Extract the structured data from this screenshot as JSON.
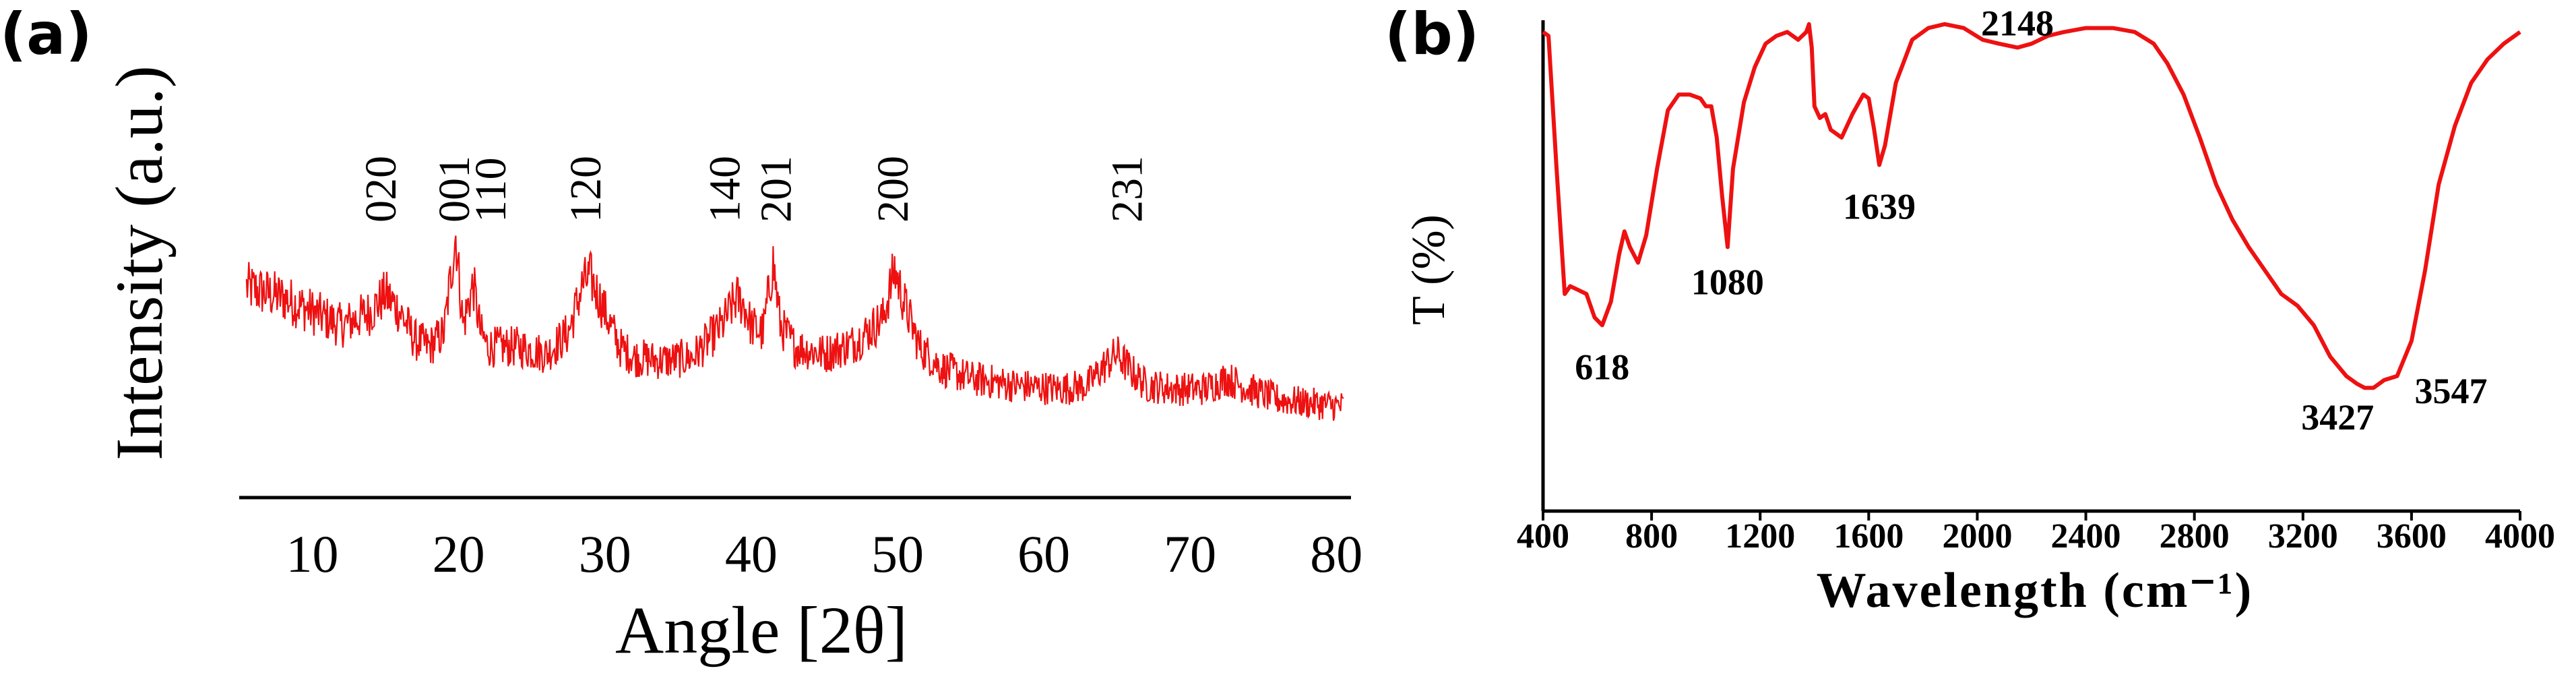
{
  "chart_data": [
    {
      "type": "line",
      "panel_label": "(a)",
      "xlabel": "Angle [2θ]",
      "ylabel": "Intensity (a.u.)",
      "xlim": [
        5,
        81
      ],
      "x_ticks": [
        10,
        20,
        30,
        40,
        50,
        60,
        70,
        80
      ],
      "y_ticks_shown": false,
      "grid": false,
      "color": "#ee1111",
      "noise_amplitude": 0.35,
      "series": [
        {
          "x": [
            5.5,
            8,
            10,
            12,
            14,
            15,
            16,
            17,
            18,
            19,
            19.8,
            20.3,
            21,
            21.5,
            22,
            24,
            26,
            27.5,
            28.5,
            29,
            30,
            31,
            32,
            34,
            36,
            38,
            39,
            39.5,
            40,
            40.8,
            41.5,
            42,
            43,
            45,
            47,
            49,
            49.8,
            50.5,
            51.5,
            53,
            55,
            58,
            61,
            63,
            64,
            65,
            66,
            67,
            69,
            71,
            72.5,
            74,
            76,
            78,
            80.5
          ],
          "y": [
            4.5,
            4.2,
            3.8,
            3.4,
            3.8,
            4.3,
            3.8,
            3.0,
            2.8,
            3.2,
            6.0,
            3.4,
            4.6,
            3.2,
            2.8,
            2.8,
            2.6,
            3.2,
            4.6,
            4.8,
            3.8,
            2.8,
            2.5,
            2.4,
            2.5,
            3.4,
            4.2,
            4.0,
            3.4,
            3.2,
            5.2,
            3.4,
            2.8,
            2.6,
            2.9,
            3.6,
            5.0,
            4.0,
            2.8,
            2.2,
            1.9,
            1.7,
            1.6,
            1.7,
            2.2,
            2.6,
            2.1,
            1.7,
            1.6,
            1.6,
            1.9,
            1.6,
            1.3,
            1.2,
            1.1
          ]
        }
      ],
      "annotations": [
        {
          "text": "020",
          "x": 15
        },
        {
          "text": "001",
          "x": 20
        },
        {
          "text": "110",
          "x": 22.5
        },
        {
          "text": "120",
          "x": 29
        },
        {
          "text": "140",
          "x": 38.5
        },
        {
          "text": "201",
          "x": 42
        },
        {
          "text": "200",
          "x": 50
        },
        {
          "text": "231",
          "x": 66
        }
      ]
    },
    {
      "type": "line",
      "panel_label": "(b)",
      "xlabel": "Wavelength (cm⁻¹)",
      "ylabel": "T (%)",
      "xlim": [
        400,
        4000
      ],
      "x_ticks": [
        400,
        800,
        1200,
        1600,
        2000,
        2400,
        2800,
        3200,
        3600,
        4000
      ],
      "x_tick_labels": [
        "400",
        "800",
        "1200",
        "1600",
        "2000",
        "2400",
        "2800",
        "3200",
        "3600",
        "4000"
      ],
      "y_ticks_shown": false,
      "grid": false,
      "color": "#ee1111",
      "series": [
        {
          "x": [
            400,
            420,
            450,
            480,
            500,
            530,
            560,
            590,
            618,
            650,
            680,
            700,
            720,
            750,
            780,
            820,
            860,
            900,
            940,
            980,
            1000,
            1020,
            1040,
            1060,
            1080,
            1100,
            1140,
            1180,
            1220,
            1260,
            1300,
            1340,
            1370,
            1380,
            1390,
            1400,
            1420,
            1440,
            1460,
            1500,
            1540,
            1580,
            1600,
            1620,
            1639,
            1660,
            1700,
            1760,
            1820,
            1880,
            1950,
            2020,
            2080,
            2148,
            2200,
            2260,
            2320,
            2400,
            2500,
            2580,
            2650,
            2700,
            2760,
            2820,
            2880,
            2940,
            3000,
            3060,
            3120,
            3180,
            3240,
            3300,
            3360,
            3400,
            3427,
            3460,
            3500,
            3547,
            3600,
            3650,
            3700,
            3760,
            3820,
            3880,
            3940,
            4000
          ],
          "y": [
            97,
            96,
            62,
            30,
            32,
            31,
            30,
            24,
            22,
            28,
            40,
            46,
            42,
            38,
            45,
            62,
            77,
            81,
            81,
            80,
            78,
            78,
            70,
            55,
            42,
            62,
            79,
            88,
            94,
            96,
            97,
            95,
            97,
            99,
            93,
            78,
            75,
            76,
            72,
            70,
            76,
            81,
            80,
            72,
            63,
            68,
            84,
            95,
            98,
            99,
            98,
            95,
            94,
            93,
            94,
            96,
            97,
            98,
            98,
            97,
            94,
            89,
            81,
            70,
            58,
            49,
            42,
            36,
            30,
            27,
            22,
            14,
            9,
            7,
            6,
            6,
            8,
            9,
            18,
            36,
            58,
            73,
            84,
            90,
            94,
            97
          ]
        }
      ],
      "annotations": [
        {
          "text": "618",
          "x": 618,
          "y": 22
        },
        {
          "text": "1080",
          "x": 1080,
          "y": 42
        },
        {
          "text": "1639",
          "x": 1639,
          "y": 63
        },
        {
          "text": "2148",
          "x": 2148,
          "y": 93
        },
        {
          "text": "3427",
          "x": 3427,
          "y": 6
        },
        {
          "text": "3547",
          "x": 3547,
          "y": 9
        }
      ]
    }
  ]
}
